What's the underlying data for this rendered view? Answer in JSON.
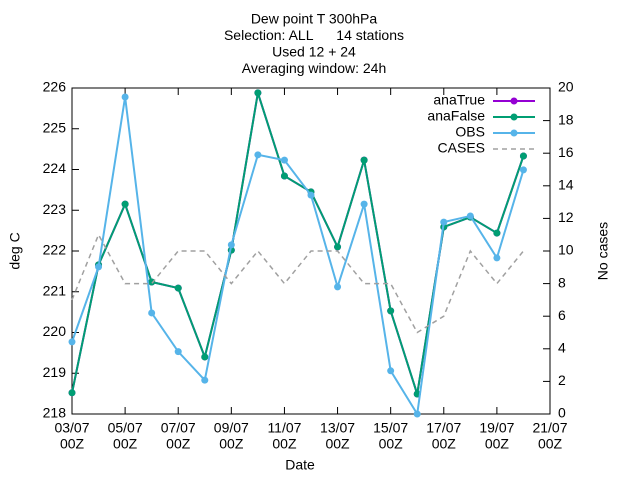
{
  "chart_data": {
    "type": "line",
    "title": [
      "Dew point T 300hPa",
      "Selection: ALL      14 stations",
      "Used 12 + 24",
      "Averaging window: 24h"
    ],
    "xlabel": "Date",
    "ylabel": "deg C",
    "y2label": "No cases",
    "x": [
      "03/07 00Z",
      "04/07 00Z",
      "05/07 00Z",
      "06/07 00Z",
      "07/07 00Z",
      "08/07 00Z",
      "09/07 00Z",
      "10/07 00Z",
      "11/07 00Z",
      "12/07 00Z",
      "13/07 00Z",
      "14/07 00Z",
      "15/07 00Z",
      "16/07 00Z",
      "17/07 00Z",
      "18/07 00Z",
      "19/07 00Z",
      "20/07 00Z"
    ],
    "xlim": [
      "03/07 00Z",
      "21/07 00Z"
    ],
    "xticks": [
      {
        "date": "03/07",
        "time": "00Z"
      },
      {
        "date": "05/07",
        "time": "00Z"
      },
      {
        "date": "07/07",
        "time": "00Z"
      },
      {
        "date": "09/07",
        "time": "00Z"
      },
      {
        "date": "11/07",
        "time": "00Z"
      },
      {
        "date": "13/07",
        "time": "00Z"
      },
      {
        "date": "15/07",
        "time": "00Z"
      },
      {
        "date": "17/07",
        "time": "00Z"
      },
      {
        "date": "19/07",
        "time": "00Z"
      },
      {
        "date": "21/07",
        "time": "00Z"
      }
    ],
    "ylim": [
      218,
      226
    ],
    "yticks": [
      218,
      219,
      220,
      221,
      222,
      223,
      224,
      225,
      226
    ],
    "y2lim": [
      0,
      20
    ],
    "y2ticks": [
      0,
      2,
      4,
      6,
      8,
      10,
      12,
      14,
      16,
      18,
      20
    ],
    "grid": false,
    "legend": "top-right",
    "series": [
      {
        "name": "anaTrue",
        "color": "#9400d3",
        "markers": true,
        "values": [
          218.52,
          221.66,
          223.15,
          221.24,
          221.09,
          219.4,
          222.02,
          225.88,
          223.84,
          223.45,
          222.1,
          224.23,
          220.53,
          218.49,
          222.59,
          222.83,
          222.44,
          224.33
        ]
      },
      {
        "name": "anaFalse",
        "color": "#009e73",
        "markers": true,
        "values": [
          218.52,
          221.66,
          223.15,
          221.24,
          221.09,
          219.4,
          222.02,
          225.88,
          223.84,
          223.45,
          222.1,
          224.23,
          220.53,
          218.49,
          222.59,
          222.83,
          222.44,
          224.33
        ]
      },
      {
        "name": "OBS",
        "color": "#56b4e9",
        "markers": true,
        "values": [
          219.77,
          221.61,
          225.78,
          220.48,
          219.53,
          218.83,
          222.15,
          224.36,
          224.23,
          223.37,
          221.12,
          223.15,
          219.06,
          218.0,
          222.71,
          222.86,
          221.83,
          223.99
        ]
      },
      {
        "name": "CASES",
        "color": "#a0a0a0",
        "dashed": true,
        "markers": false,
        "axis": "y2",
        "values": [
          7,
          11,
          8,
          8,
          10,
          10,
          8,
          10,
          8,
          10,
          10,
          8,
          8,
          5,
          6,
          10,
          8,
          10
        ]
      }
    ]
  }
}
